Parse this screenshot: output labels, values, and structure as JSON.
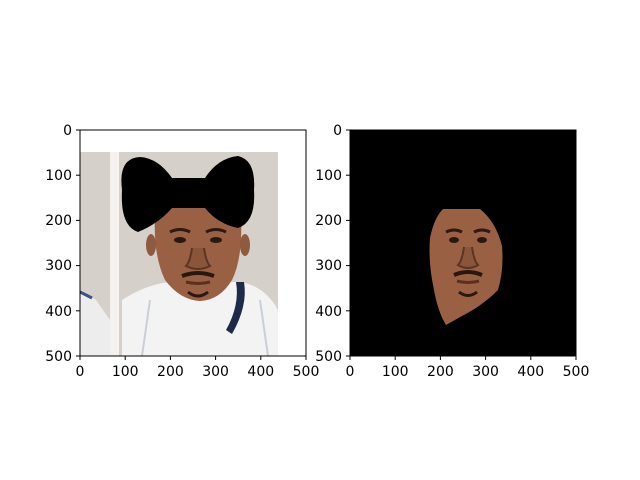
{
  "panels": [
    {
      "name": "original-with-bowtie",
      "x_ticks": [
        "0",
        "100",
        "200",
        "300",
        "400",
        "500"
      ],
      "y_ticks": [
        "0",
        "100",
        "200",
        "300",
        "400",
        "500"
      ],
      "x_range": [
        0,
        500
      ],
      "y_range": [
        0,
        500
      ],
      "y_inverted": true,
      "background": "#ffffff",
      "content": [
        "backdrop",
        "player-portrait",
        "black-bowtie-mask"
      ]
    },
    {
      "name": "segmented-face",
      "x_ticks": [
        "0",
        "100",
        "200",
        "300",
        "400",
        "500"
      ],
      "y_ticks": [
        "0",
        "100",
        "200",
        "300",
        "400",
        "500"
      ],
      "x_range": [
        0,
        500
      ],
      "y_range": [
        0,
        500
      ],
      "y_inverted": true,
      "background": "#000000",
      "content": [
        "face-cutout"
      ]
    }
  ],
  "colors": {
    "backdrop": "#d6d0ca",
    "skin": "#9a6044",
    "jersey": "#f3f3f3",
    "jersey_trim": "#3b4f8a",
    "mask": "#000000"
  }
}
